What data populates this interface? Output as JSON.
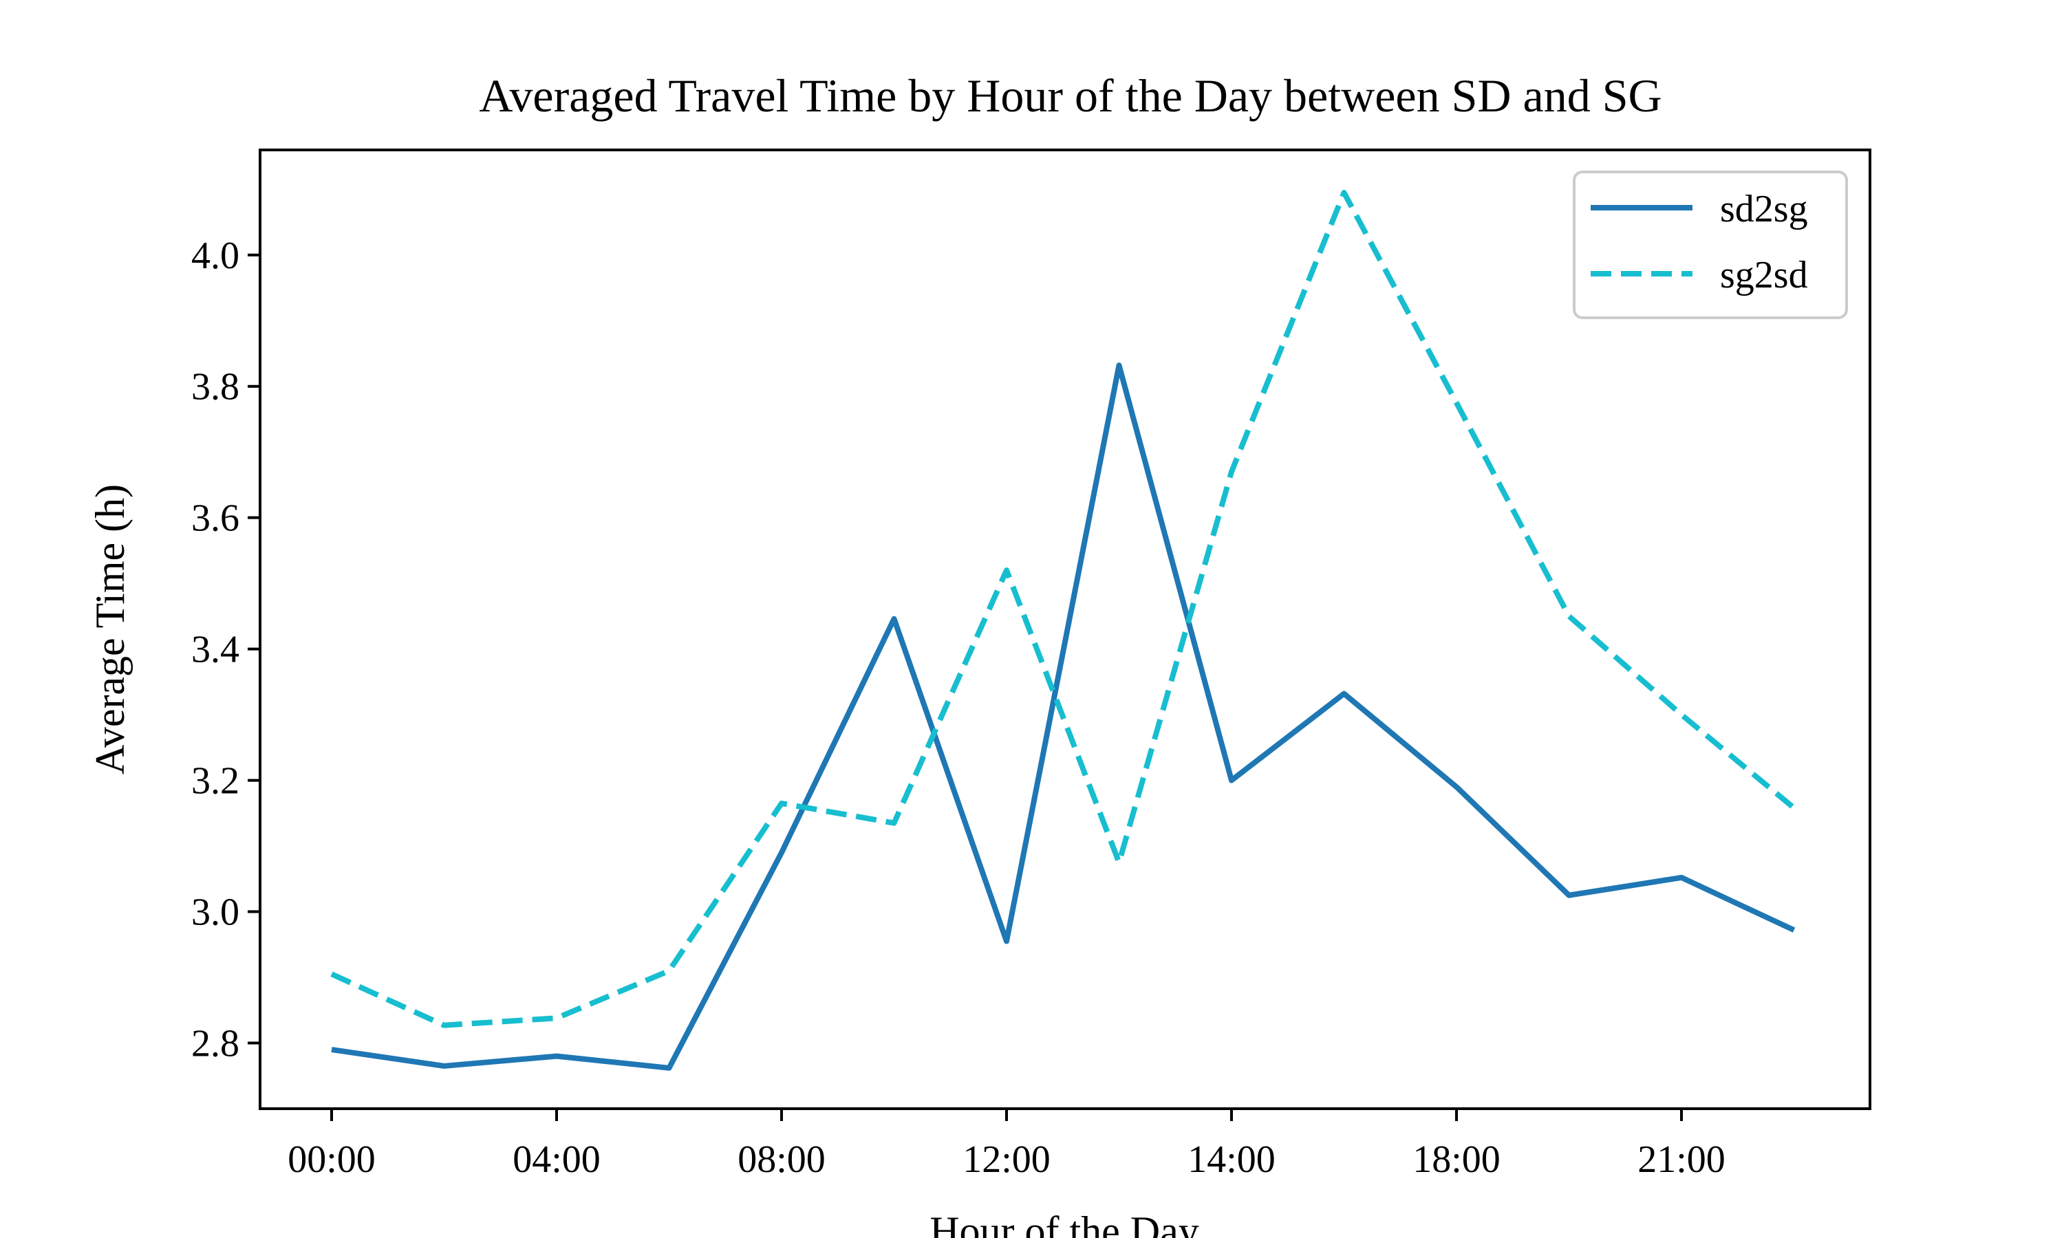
{
  "chart_data": {
    "type": "line",
    "title": "Averaged Travel Time by Hour of the Day between SD and SG",
    "xlabel": "Hour of the Day",
    "ylabel": "Average Time (h)",
    "x_ticks": [
      "00:00",
      "04:00",
      "08:00",
      "12:00",
      "14:00",
      "18:00",
      "21:00"
    ],
    "x_tick_index": [
      0,
      2,
      4,
      6,
      8,
      10,
      12
    ],
    "x_index": [
      0,
      1,
      2,
      3,
      4,
      5,
      6,
      7,
      8,
      9,
      10,
      11,
      12,
      13
    ],
    "ylim": [
      2.7,
      4.16
    ],
    "y_ticks": [
      2.8,
      3.0,
      3.2,
      3.4,
      3.6,
      3.8,
      4.0
    ],
    "y_tick_labels": [
      "2.8",
      "3.0",
      "3.2",
      "3.4",
      "3.6",
      "3.8",
      "4.0"
    ],
    "grid": false,
    "legend_position": "top-right",
    "series": [
      {
        "name": "sd2sg",
        "color": "#1f77b4",
        "style": "solid",
        "values": [
          2.79,
          2.765,
          2.78,
          2.762,
          3.09,
          3.446,
          2.955,
          3.832,
          3.2,
          3.332,
          3.19,
          3.025,
          3.052,
          2.972
        ]
      },
      {
        "name": "sg2sd",
        "color": "#17becf",
        "style": "dashed",
        "values": [
          2.905,
          2.827,
          2.838,
          2.91,
          3.165,
          3.135,
          3.52,
          3.075,
          3.67,
          4.095,
          3.775,
          3.45,
          3.3,
          3.158
        ]
      }
    ]
  }
}
